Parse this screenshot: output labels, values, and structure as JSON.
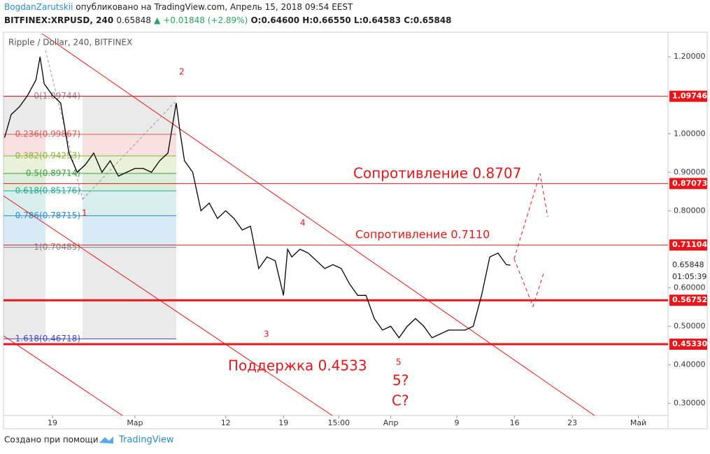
{
  "header": {
    "author": "BogdanZarutskii",
    "published": "опубликовано на TradingView.com, Апрель 15, 2018 09:54 EEST",
    "symbol": "BITFINEX:XRPUSD, 240",
    "last": "0.65848",
    "change": "▲ +0.01848 (+2.89%)",
    "open": "O:0.64600",
    "high": "H:0.66550",
    "low": "L:0.64583",
    "close": "C:0.65848"
  },
  "chart_data": {
    "type": "line",
    "title": "Ripple / Dollar, 240, BITFINEX",
    "series": [
      {
        "name": "Ripple / Dollar, 240, BITFINEX",
        "color": "#000000",
        "x": [
          44.2,
          45,
          46,
          47,
          48,
          48.5,
          49,
          50,
          51,
          52,
          53,
          54,
          55,
          56,
          57,
          58,
          59,
          60,
          61,
          62,
          63,
          64,
          65,
          65.5,
          66,
          67,
          68,
          69,
          70,
          71,
          72,
          73,
          74,
          75,
          76,
          77,
          78,
          78.5,
          79,
          80,
          81,
          82,
          83,
          84,
          85,
          86,
          87,
          88,
          89,
          90,
          91,
          92,
          93,
          94,
          95,
          96,
          97,
          98,
          99,
          100,
          101,
          102,
          103,
          104,
          105,
          105.5
        ],
        "values": [
          0.99,
          1.05,
          1.07,
          1.1,
          1.14,
          1.2,
          1.13,
          1.1,
          1.08,
          0.95,
          0.9,
          0.92,
          0.95,
          0.9,
          0.93,
          0.89,
          0.9,
          0.91,
          0.91,
          0.9,
          0.93,
          0.95,
          1.08,
          1,
          0.93,
          0.9,
          0.8,
          0.82,
          0.78,
          0.8,
          0.78,
          0.75,
          0.76,
          0.65,
          0.68,
          0.67,
          0.58,
          0.7,
          0.68,
          0.7,
          0.69,
          0.67,
          0.65,
          0.66,
          0.65,
          0.61,
          0.58,
          0.58,
          0.52,
          0.49,
          0.5,
          0.47,
          0.5,
          0.52,
          0.5,
          0.47,
          0.48,
          0.49,
          0.49,
          0.49,
          0.5,
          0.58,
          0.68,
          0.69,
          0.66,
          0.65848
        ]
      }
    ],
    "xlim": [
      44.07,
      124.6
    ],
    "xticks": [
      {
        "value": 50,
        "label": "19"
      },
      {
        "value": 60,
        "label": "Мар"
      },
      {
        "value": 71,
        "label": "12"
      },
      {
        "value": 78,
        "label": "19"
      },
      {
        "value": 84.7,
        "label": "15:00"
      },
      {
        "value": 91,
        "label": "Апр"
      },
      {
        "value": 99,
        "label": "9"
      },
      {
        "value": 106,
        "label": "16"
      },
      {
        "value": 113,
        "label": "23"
      },
      {
        "value": 121,
        "label": "Май"
      }
    ],
    "ylim": [
      0.268,
      1.264
    ],
    "yticks": [
      {
        "value": 1.2,
        "label": "1.20000"
      },
      {
        "value": 1.0,
        "label": "1.00000"
      },
      {
        "value": 0.9,
        "label": "0.90000"
      },
      {
        "value": 0.8,
        "label": "0.80000"
      },
      {
        "value": 0.6,
        "label": "0.60000"
      },
      {
        "value": 0.5,
        "label": "0.50000"
      },
      {
        "value": 0.4,
        "label": "0.40000"
      },
      {
        "value": 0.3,
        "label": "0.30000"
      }
    ],
    "levels": [
      {
        "value": 1.09746,
        "label": "1.09746",
        "thick": false
      },
      {
        "value": 0.87073,
        "label": "0.87073",
        "thick": false
      },
      {
        "value": 0.71104,
        "label": "0.71104",
        "thick": false
      },
      {
        "value": 0.56752,
        "label": "0.56752",
        "thick": true
      },
      {
        "value": 0.4533,
        "label": "0.45330",
        "thick": true
      }
    ],
    "level_color": "#e8161a",
    "last_price": {
      "value": 0.65848,
      "label": "0.65848",
      "countdown": "01:05:39"
    },
    "fib": [
      {
        "value": 1.09744,
        "label": "0(1.09744)",
        "color": "#888888"
      },
      {
        "value": 0.99867,
        "label": "0.236(0.99867)",
        "color": "#e05252"
      },
      {
        "value": 0.94253,
        "label": "0.382(0.94253)",
        "color": "#8ab33a"
      },
      {
        "value": 0.89714,
        "label": "0.5(0.89714)",
        "color": "#3aa03a"
      },
      {
        "value": 0.85176,
        "label": "0.618(0.85176)",
        "color": "#26a69a"
      },
      {
        "value": 0.78715,
        "label": "0.786(0.78715)",
        "color": "#2a8ad0"
      },
      {
        "value": 0.70485,
        "label": "1(0.70485)",
        "color": "#888888"
      },
      {
        "value": 0.46718,
        "label": "1.618(0.46718)",
        "color": "#4646c8"
      }
    ],
    "annotations": {
      "res1": "Сопротивление 0.8707",
      "res2": "Сопротивление 0.7110",
      "sup": "Поддержка 0.4533",
      "w1": "1",
      "w2": "2",
      "w3": "3",
      "w4": "4",
      "w5": "5",
      "q5": "5?",
      "qc": "C?"
    }
  },
  "footer": {
    "made": "Создано при помощи",
    "brand": "TradingView"
  }
}
